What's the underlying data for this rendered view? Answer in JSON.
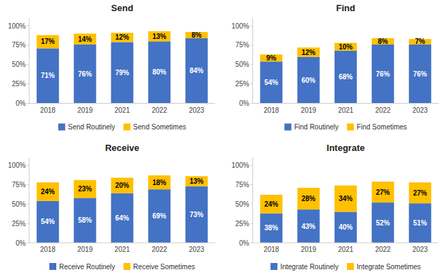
{
  "chart_data": [
    {
      "type": "bar",
      "title": "Send",
      "stacked": true,
      "data_labels": true,
      "grid": false,
      "legend": "bottom",
      "categories": [
        "2018",
        "2019",
        "2021",
        "2022",
        "2023"
      ],
      "series": [
        {
          "name": "Send Routinely",
          "color": "#4472C4",
          "values": [
            71,
            76,
            79,
            80,
            84
          ],
          "value_labels": [
            "71%",
            "76%",
            "79%",
            "80%",
            "84%"
          ]
        },
        {
          "name": "Send Sometimes",
          "color": "#FFC000",
          "values": [
            17,
            14,
            12,
            13,
            8
          ],
          "value_labels": [
            "17%",
            "14%",
            "12%",
            "13%",
            "8%"
          ]
        }
      ],
      "ylim": [
        0,
        110
      ],
      "yticks": [
        {
          "value": 0,
          "label": "0%"
        },
        {
          "value": 25,
          "label": "25%"
        },
        {
          "value": 50,
          "label": "50%"
        },
        {
          "value": 75,
          "label": "75%"
        },
        {
          "value": 100,
          "label": "100%"
        }
      ]
    },
    {
      "type": "bar",
      "title": "Find",
      "stacked": true,
      "data_labels": true,
      "grid": false,
      "legend": "bottom",
      "categories": [
        "2018",
        "2019",
        "2021",
        "2022",
        "2023"
      ],
      "series": [
        {
          "name": "Find Routinely",
          "color": "#4472C4",
          "values": [
            54,
            60,
            68,
            76,
            76
          ],
          "value_labels": [
            "54%",
            "60%",
            "68%",
            "76%",
            "76%"
          ]
        },
        {
          "name": "Find Sometimes",
          "color": "#FFC000",
          "values": [
            9,
            12,
            10,
            8,
            7
          ],
          "value_labels": [
            "9%",
            "12%",
            "10%",
            "8%",
            "7%"
          ]
        }
      ],
      "ylim": [
        0,
        110
      ],
      "yticks": [
        {
          "value": 0,
          "label": "0%"
        },
        {
          "value": 25,
          "label": "25%"
        },
        {
          "value": 50,
          "label": "50%"
        },
        {
          "value": 75,
          "label": "75%"
        },
        {
          "value": 100,
          "label": "100%"
        }
      ]
    },
    {
      "type": "bar",
      "title": "Receive",
      "stacked": true,
      "data_labels": true,
      "grid": false,
      "legend": "bottom",
      "categories": [
        "2018",
        "2019",
        "2021",
        "2022",
        "2023"
      ],
      "series": [
        {
          "name": "Receive Routinely",
          "color": "#4472C4",
          "values": [
            54,
            58,
            64,
            69,
            73
          ],
          "value_labels": [
            "54%",
            "58%",
            "64%",
            "69%",
            "73%"
          ]
        },
        {
          "name": "Receive Sometimes",
          "color": "#FFC000",
          "values": [
            24,
            23,
            20,
            18,
            13
          ],
          "value_labels": [
            "24%",
            "23%",
            "20%",
            "18%",
            "13%"
          ]
        }
      ],
      "ylim": [
        0,
        110
      ],
      "yticks": [
        {
          "value": 0,
          "label": "0%"
        },
        {
          "value": 25,
          "label": "25%"
        },
        {
          "value": 50,
          "label": "50%"
        },
        {
          "value": 75,
          "label": "75%"
        },
        {
          "value": 100,
          "label": "100%"
        }
      ]
    },
    {
      "type": "bar",
      "title": "Integrate",
      "stacked": true,
      "data_labels": true,
      "grid": false,
      "legend": "bottom",
      "categories": [
        "2018",
        "2019",
        "2021",
        "2022",
        "2023"
      ],
      "series": [
        {
          "name": "Integrate Routinely",
          "color": "#4472C4",
          "values": [
            38,
            43,
            40,
            52,
            51
          ],
          "value_labels": [
            "38%",
            "43%",
            "40%",
            "52%",
            "51%"
          ]
        },
        {
          "name": "Integrate Sometimes",
          "color": "#FFC000",
          "values": [
            24,
            28,
            34,
            27,
            27
          ],
          "value_labels": [
            "24%",
            "28%",
            "34%",
            "27%",
            "27%"
          ]
        }
      ],
      "ylim": [
        0,
        110
      ],
      "yticks": [
        {
          "value": 0,
          "label": "0%"
        },
        {
          "value": 25,
          "label": "25%"
        },
        {
          "value": 50,
          "label": "50%"
        },
        {
          "value": 75,
          "label": "75%"
        },
        {
          "value": 100,
          "label": "100%"
        }
      ]
    }
  ]
}
